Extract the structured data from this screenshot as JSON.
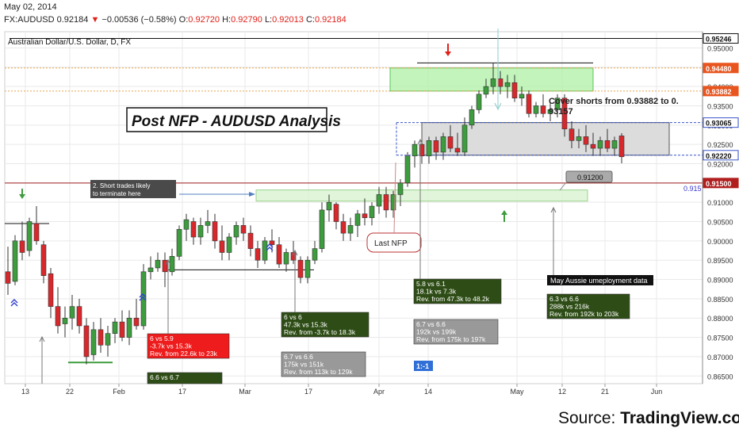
{
  "header": {
    "date": "May 02, 2014",
    "symbol": "FX:AUDUSD",
    "last": "0.92184",
    "change": "−0.00536 (−0.58%)",
    "open_label": "O:",
    "open": "0.92720",
    "high_label": "H:",
    "high": "0.92790",
    "low_label": "L:",
    "low": "0.92013",
    "close_label": "C:",
    "close": "0.92184"
  },
  "source": {
    "prefix": "Source: ",
    "name": "TradingView.com"
  },
  "colors": {
    "up": "#3d9c3d",
    "down": "#d8282c",
    "green_zone": "#a8f0a0",
    "gray_zone": "#dcdcdc",
    "price_box": "#e8551f",
    "grid": "#e9e9e9"
  },
  "chart_data": {
    "type": "candlestick",
    "title": "Australian Dollar/U.S. Dollar, D, FX",
    "annotation_title": "Post NFP - AUDUSD Analysis",
    "ylim": [
      0.863,
      0.9542
    ],
    "y_ticks": [
      "0.95000",
      "0.94500",
      "0.94000",
      "0.93500",
      "0.93000",
      "0.92500",
      "0.92000",
      "0.91500",
      "0.91000",
      "0.90500",
      "0.90000",
      "0.89500",
      "0.89000",
      "0.88500",
      "0.88000",
      "0.87500",
      "0.87000",
      "0.86500"
    ],
    "x_ticks": [
      "13",
      "22",
      "Feb",
      "17",
      "Mar",
      "17",
      "Apr",
      "14",
      "May",
      "12",
      "21",
      "Jun"
    ],
    "price_labels": [
      {
        "text": "0.95246",
        "value": 0.95246,
        "style": "dark"
      },
      {
        "text": "0.94480",
        "value": 0.9448,
        "style": "orange"
      },
      {
        "text": "0.93882",
        "value": 0.93882,
        "style": "orange"
      },
      {
        "text": "0.93065",
        "value": 0.93065,
        "style": "blue"
      },
      {
        "text": "0.92220",
        "value": 0.9222,
        "style": "blue"
      },
      {
        "text": "0.91500",
        "value": 0.915,
        "style": "red"
      }
    ],
    "extra_labels": {
      "line_915": "0.915",
      "callout_912": "0.91200",
      "ratio": "1:-1",
      "last_nfp": "Last NFP"
    },
    "notes": {
      "cover_shorts": [
        "Cover shorts from 0.93882 to 0.",
        "93157"
      ],
      "short_trades": [
        "2. Short trades likely",
        "to terminate here"
      ],
      "may_aussie": "May Aussie umeployment data"
    },
    "data_boxes": [
      {
        "style": "red",
        "lines": [
          "6 vs 5.9",
          "-3.7k vs 15.3k",
          "Rev. from 22.6k to 23k"
        ]
      },
      {
        "style": "green",
        "lines": [
          "6.6 vs 6.7",
          ""
        ]
      },
      {
        "style": "green",
        "lines": [
          "6 vs 6",
          "47.3k vs 15.3k",
          "Rev. from -3.7k to 18.3k"
        ]
      },
      {
        "style": "gray",
        "lines": [
          "6.7 vs 6.6",
          "175k vs 151k",
          "Rev. from 113k to 129k"
        ]
      },
      {
        "style": "green",
        "lines": [
          "5.8 vs 6.1",
          "18.1k vs 7.3k",
          "Rev. from 47.3k to 48.2k"
        ]
      },
      {
        "style": "gray",
        "lines": [
          "6.7 vs 6.6",
          "192k vs 199k",
          "Rev. from 175k to 197k"
        ]
      },
      {
        "style": "green",
        "lines": [
          "6.3 vs 6.6",
          "288k vs 216k",
          "Rev. from 192k to 203k"
        ]
      }
    ],
    "candles": [
      [
        0.892,
        0.8985,
        0.886,
        0.889
      ],
      [
        0.8895,
        0.9015,
        0.8885,
        0.9
      ],
      [
        0.9,
        0.905,
        0.895,
        0.897
      ],
      [
        0.8975,
        0.906,
        0.896,
        0.905
      ],
      [
        0.9045,
        0.909,
        0.899,
        0.9
      ],
      [
        0.899,
        0.9,
        0.889,
        0.891
      ],
      [
        0.8915,
        0.893,
        0.88,
        0.883
      ],
      [
        0.883,
        0.888,
        0.876,
        0.878
      ],
      [
        0.8785,
        0.883,
        0.875,
        0.88
      ],
      [
        0.88,
        0.886,
        0.877,
        0.883
      ],
      [
        0.883,
        0.885,
        0.876,
        0.878
      ],
      [
        0.878,
        0.88,
        0.868,
        0.87
      ],
      [
        0.8705,
        0.879,
        0.869,
        0.877
      ],
      [
        0.877,
        0.88,
        0.871,
        0.873
      ],
      [
        0.873,
        0.878,
        0.87,
        0.876
      ],
      [
        0.876,
        0.88,
        0.8735,
        0.879
      ],
      [
        0.879,
        0.882,
        0.874,
        0.875
      ],
      [
        0.875,
        0.882,
        0.873,
        0.88
      ],
      [
        0.88,
        0.885,
        0.877,
        0.878
      ],
      [
        0.878,
        0.894,
        0.877,
        0.892
      ],
      [
        0.892,
        0.896,
        0.89,
        0.893
      ],
      [
        0.893,
        0.897,
        0.892,
        0.895
      ],
      [
        0.895,
        0.897,
        0.888,
        0.892
      ],
      [
        0.892,
        0.898,
        0.891,
        0.896
      ],
      [
        0.896,
        0.904,
        0.895,
        0.903
      ],
      [
        0.903,
        0.907,
        0.9,
        0.9055
      ],
      [
        0.905,
        0.906,
        0.899,
        0.901
      ],
      [
        0.901,
        0.906,
        0.899,
        0.904
      ],
      [
        0.904,
        0.908,
        0.902,
        0.905
      ],
      [
        0.905,
        0.907,
        0.898,
        0.9
      ],
      [
        0.9,
        0.904,
        0.895,
        0.897
      ],
      [
        0.897,
        0.902,
        0.895,
        0.901
      ],
      [
        0.901,
        0.905,
        0.899,
        0.904
      ],
      [
        0.904,
        0.906,
        0.9,
        0.902
      ],
      [
        0.902,
        0.904,
        0.896,
        0.898
      ],
      [
        0.898,
        0.9,
        0.893,
        0.895
      ],
      [
        0.895,
        0.901,
        0.894,
        0.9
      ],
      [
        0.9,
        0.903,
        0.897,
        0.899
      ],
      [
        0.899,
        0.901,
        0.893,
        0.894
      ],
      [
        0.894,
        0.898,
        0.892,
        0.897
      ],
      [
        0.897,
        0.9,
        0.894,
        0.895
      ],
      [
        0.895,
        0.896,
        0.889,
        0.8905
      ],
      [
        0.8905,
        0.896,
        0.889,
        0.895
      ],
      [
        0.895,
        0.9,
        0.894,
        0.898
      ],
      [
        0.898,
        0.91,
        0.897,
        0.908
      ],
      [
        0.908,
        0.912,
        0.905,
        0.91
      ],
      [
        0.9095,
        0.91,
        0.903,
        0.905
      ],
      [
        0.905,
        0.907,
        0.9,
        0.902
      ],
      [
        0.902,
        0.906,
        0.9,
        0.904
      ],
      [
        0.904,
        0.908,
        0.901,
        0.907
      ],
      [
        0.907,
        0.911,
        0.904,
        0.906
      ],
      [
        0.906,
        0.91,
        0.904,
        0.909
      ],
      [
        0.909,
        0.914,
        0.907,
        0.912
      ],
      [
        0.912,
        0.914,
        0.906,
        0.908
      ],
      [
        0.908,
        0.913,
        0.906,
        0.912
      ],
      [
        0.912,
        0.916,
        0.909,
        0.915
      ],
      [
        0.915,
        0.923,
        0.914,
        0.922
      ],
      [
        0.922,
        0.926,
        0.919,
        0.925
      ],
      [
        0.925,
        0.926,
        0.92,
        0.922
      ],
      [
        0.922,
        0.927,
        0.92,
        0.926
      ],
      [
        0.926,
        0.927,
        0.921,
        0.923
      ],
      [
        0.923,
        0.928,
        0.921,
        0.927
      ],
      [
        0.927,
        0.93,
        0.923,
        0.924
      ],
      [
        0.924,
        0.928,
        0.922,
        0.923
      ],
      [
        0.923,
        0.932,
        0.922,
        0.93
      ],
      [
        0.93,
        0.935,
        0.929,
        0.934
      ],
      [
        0.934,
        0.939,
        0.933,
        0.938
      ],
      [
        0.938,
        0.942,
        0.937,
        0.94
      ],
      [
        0.94,
        0.946,
        0.938,
        0.942
      ],
      [
        0.942,
        0.944,
        0.938,
        0.94
      ],
      [
        0.94,
        0.943,
        0.937,
        0.941
      ],
      [
        0.941,
        0.943,
        0.936,
        0.937
      ],
      [
        0.937,
        0.94,
        0.935,
        0.938
      ],
      [
        0.938,
        0.939,
        0.932,
        0.933
      ],
      [
        0.933,
        0.936,
        0.932,
        0.935
      ],
      [
        0.935,
        0.938,
        0.932,
        0.933
      ],
      [
        0.933,
        0.936,
        0.931,
        0.934
      ],
      [
        0.934,
        0.938,
        0.932,
        0.937
      ],
      [
        0.937,
        0.938,
        0.927,
        0.929
      ],
      [
        0.929,
        0.931,
        0.924,
        0.926
      ],
      [
        0.926,
        0.929,
        0.924,
        0.927
      ],
      [
        0.927,
        0.93,
        0.923,
        0.925
      ],
      [
        0.925,
        0.928,
        0.922,
        0.924
      ],
      [
        0.924,
        0.927,
        0.922,
        0.926
      ],
      [
        0.926,
        0.929,
        0.923,
        0.924
      ],
      [
        0.924,
        0.927,
        0.922,
        0.926
      ],
      [
        0.9272,
        0.9279,
        0.9201,
        0.9218
      ]
    ]
  }
}
